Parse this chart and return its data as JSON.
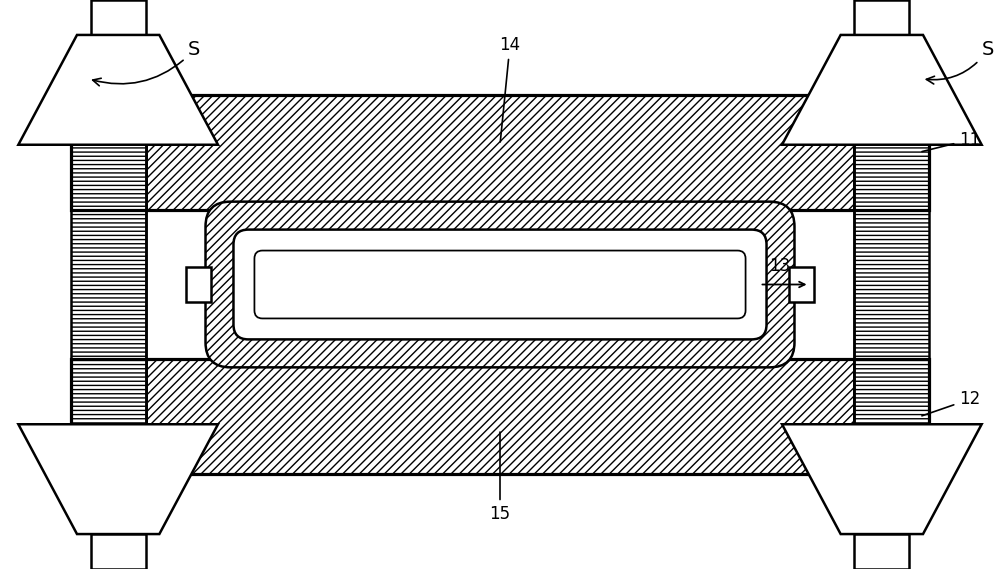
{
  "fig_width": 10.0,
  "fig_height": 5.69,
  "labels": {
    "S_left": "S",
    "S_right": "S",
    "11": "11",
    "12": "12",
    "13": "13",
    "14": "14",
    "15": "15"
  },
  "colors": {
    "bg": "white",
    "line": "black",
    "hatch_fill": "white"
  },
  "lw": 1.8
}
